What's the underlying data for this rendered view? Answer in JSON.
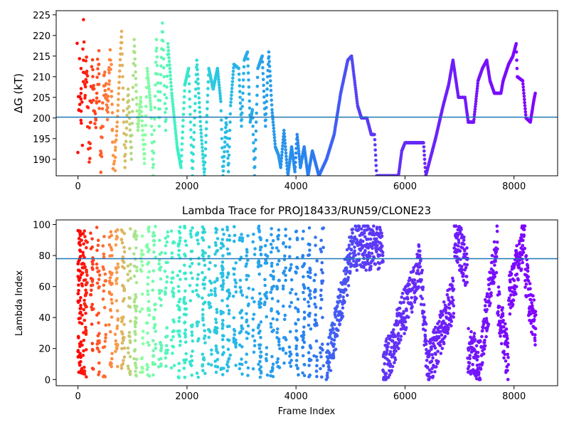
{
  "chart_data": [
    {
      "type": "scatter",
      "title": "",
      "xlabel": "",
      "ylabel": "ΔG (kT)",
      "xlim": [
        -400,
        8800
      ],
      "ylim": [
        186,
        226
      ],
      "xticks": [
        0,
        2000,
        4000,
        6000,
        8000
      ],
      "yticks": [
        190,
        195,
        200,
        205,
        210,
        215,
        220,
        225
      ],
      "hline": 200.2,
      "hline_color": "#1f77b4",
      "colormap": "rainbow (reversed: red at frame 0, violet at end)",
      "point_color_by": "frame index",
      "grid": false,
      "anchors": [
        [
          0,
          220,
          0
        ],
        [
          10,
          190,
          0
        ],
        [
          20,
          214,
          0
        ],
        [
          30,
          200,
          0
        ],
        [
          50,
          210,
          0
        ],
        [
          70,
          195,
          0
        ],
        [
          100,
          222,
          0
        ],
        [
          120,
          205,
          1
        ],
        [
          160,
          214,
          1
        ],
        [
          200,
          188,
          1
        ],
        [
          260,
          213,
          1
        ],
        [
          320,
          197,
          1
        ],
        [
          380,
          216,
          1
        ],
        [
          430,
          188,
          1
        ],
        [
          480,
          211,
          1
        ],
        [
          540,
          201,
          1
        ],
        [
          600,
          215,
          1
        ],
        [
          660,
          186,
          1
        ],
        [
          720,
          199,
          1
        ],
        [
          800,
          221,
          1
        ],
        [
          860,
          188,
          1
        ],
        [
          920,
          207,
          1
        ],
        [
          980,
          190,
          1
        ],
        [
          1030,
          219,
          1
        ],
        [
          1100,
          197,
          1
        ],
        [
          1150,
          205,
          1
        ],
        [
          1220,
          189,
          1
        ],
        [
          1270,
          212,
          1
        ],
        [
          1340,
          202,
          1
        ],
        [
          1380,
          186,
          1
        ],
        [
          1440,
          219,
          1
        ],
        [
          1490,
          198,
          1
        ],
        [
          1550,
          223,
          1
        ],
        [
          1610,
          197,
          1
        ],
        [
          1650,
          218,
          1
        ],
        [
          1720,
          206,
          1
        ],
        [
          1820,
          193,
          1
        ],
        [
          1890,
          188,
          1
        ],
        [
          1960,
          208,
          1
        ],
        [
          2030,
          212,
          1
        ],
        [
          2100,
          186,
          1
        ],
        [
          2180,
          214,
          1
        ],
        [
          2250,
          198,
          1
        ],
        [
          2320,
          186,
          1
        ],
        [
          2400,
          212,
          1
        ],
        [
          2480,
          207,
          1
        ],
        [
          2560,
          212,
          1
        ],
        [
          2620,
          204,
          1
        ],
        [
          2660,
          186,
          1
        ],
        [
          2720,
          200,
          1
        ],
        [
          2760,
          187,
          1
        ],
        [
          2800,
          203,
          1
        ],
        [
          2860,
          213,
          1
        ],
        [
          2950,
          212,
          1
        ],
        [
          3000,
          198,
          1
        ],
        [
          3050,
          214,
          1
        ],
        [
          3110,
          216,
          1
        ],
        [
          3160,
          199,
          1
        ],
        [
          3200,
          202,
          1
        ],
        [
          3240,
          186,
          1
        ],
        [
          3300,
          212,
          1
        ],
        [
          3380,
          215,
          1
        ],
        [
          3440,
          198,
          1
        ],
        [
          3500,
          216,
          1
        ],
        [
          3560,
          202,
          1
        ],
        [
          3620,
          193,
          1
        ],
        [
          3680,
          191,
          1
        ],
        [
          3720,
          188,
          1
        ],
        [
          3780,
          197,
          1
        ],
        [
          3850,
          186,
          1
        ],
        [
          3920,
          193,
          1
        ],
        [
          3980,
          187,
          1
        ],
        [
          4020,
          196,
          1
        ],
        [
          4080,
          188,
          1
        ],
        [
          4150,
          193,
          1
        ],
        [
          4220,
          186,
          1
        ],
        [
          4300,
          192,
          1
        ],
        [
          4420,
          186,
          1
        ],
        [
          4560,
          190,
          1
        ],
        [
          4700,
          196,
          1
        ],
        [
          4820,
          206,
          1
        ],
        [
          4950,
          214,
          1
        ],
        [
          5020,
          215,
          1
        ],
        [
          5130,
          203,
          1
        ],
        [
          5200,
          200,
          1
        ],
        [
          5300,
          200,
          1
        ],
        [
          5380,
          196,
          1
        ],
        [
          5440,
          196,
          1
        ],
        [
          5480,
          186,
          1
        ],
        [
          5700,
          186,
          1
        ],
        [
          5880,
          186,
          1
        ],
        [
          5940,
          192,
          1
        ],
        [
          6000,
          194,
          1
        ],
        [
          6340,
          194,
          1
        ],
        [
          6380,
          186,
          1
        ],
        [
          6560,
          195,
          1
        ],
        [
          6700,
          203,
          1
        ],
        [
          6800,
          208,
          1
        ],
        [
          6880,
          214,
          1
        ],
        [
          6980,
          205,
          1
        ],
        [
          7100,
          205,
          1
        ],
        [
          7160,
          199,
          1
        ],
        [
          7260,
          199,
          1
        ],
        [
          7340,
          209,
          1
        ],
        [
          7420,
          212,
          1
        ],
        [
          7500,
          214,
          1
        ],
        [
          7560,
          209,
          1
        ],
        [
          7640,
          206,
          1
        ],
        [
          7760,
          206,
          1
        ],
        [
          7800,
          209,
          1
        ],
        [
          7900,
          213,
          1
        ],
        [
          7980,
          215,
          1
        ],
        [
          8040,
          218,
          1
        ],
        [
          8060,
          210,
          1
        ],
        [
          8160,
          209,
          1
        ],
        [
          8220,
          200,
          1
        ],
        [
          8300,
          199,
          1
        ],
        [
          8360,
          204,
          1
        ],
        [
          8390,
          206,
          1
        ]
      ]
    },
    {
      "type": "scatter",
      "title": "Lambda Trace for PROJ18433/RUN59/CLONE23",
      "xlabel": "Frame Index",
      "ylabel": "Lambda Index",
      "xlim": [
        -400,
        8800
      ],
      "ylim": [
        -4,
        103
      ],
      "xticks": [
        0,
        2000,
        4000,
        6000,
        8000
      ],
      "yticks": [
        0,
        20,
        40,
        60,
        80,
        100
      ],
      "hline": 78,
      "hline_color": "#1f77b4",
      "colormap": "rainbow (reversed: red at frame 0, violet at end)",
      "point_color_by": "frame index",
      "grid": false,
      "segments": [
        {
          "start": 0,
          "end": 4560,
          "mode": "noise",
          "n": 1200
        },
        {
          "start": 4560,
          "end": 5000,
          "mode": "trend",
          "from": 5,
          "to": 80
        },
        {
          "start": 5000,
          "end": 5600,
          "mode": "trend",
          "from": 85,
          "to": 85
        },
        {
          "start": 5600,
          "end": 6250,
          "mode": "trend",
          "from": 5,
          "to": 70
        },
        {
          "start": 6250,
          "end": 6400,
          "mode": "trend",
          "from": 85,
          "to": 15
        },
        {
          "start": 6400,
          "end": 6900,
          "mode": "trend",
          "from": 5,
          "to": 55
        },
        {
          "start": 6900,
          "end": 7150,
          "mode": "trend",
          "from": 95,
          "to": 70
        },
        {
          "start": 7150,
          "end": 7400,
          "mode": "trend",
          "from": 20,
          "to": 10
        },
        {
          "start": 7400,
          "end": 7700,
          "mode": "trend",
          "from": 20,
          "to": 90
        },
        {
          "start": 7700,
          "end": 7900,
          "mode": "trend",
          "from": 50,
          "to": 10
        },
        {
          "start": 7900,
          "end": 8200,
          "mode": "trend",
          "from": 50,
          "to": 95
        },
        {
          "start": 8200,
          "end": 8400,
          "mode": "trend",
          "from": 70,
          "to": 30
        }
      ]
    }
  ]
}
